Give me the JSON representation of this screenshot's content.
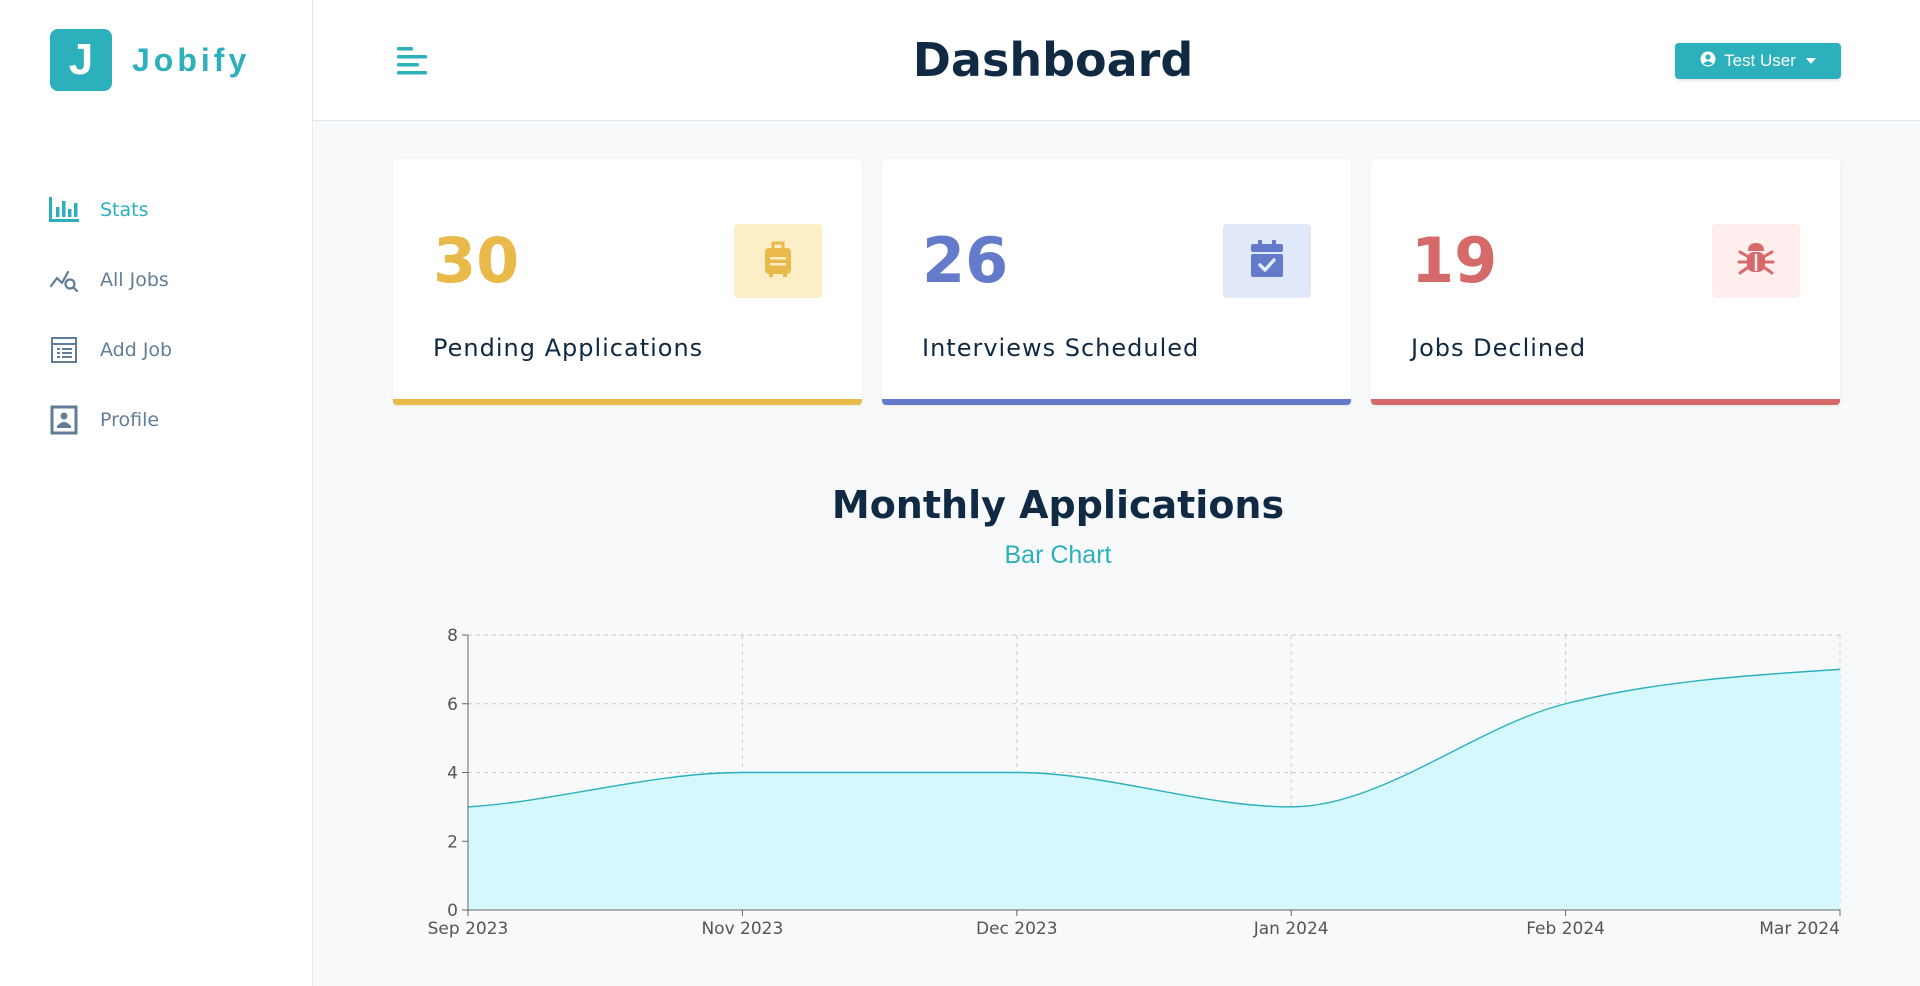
{
  "app": {
    "logo_letter": "J",
    "name": "Jobify"
  },
  "sidebar": {
    "items": [
      {
        "label": "Stats",
        "icon": "stats-icon",
        "active": true
      },
      {
        "label": "All Jobs",
        "icon": "all-jobs-icon",
        "active": false
      },
      {
        "label": "Add Job",
        "icon": "add-job-icon",
        "active": false
      },
      {
        "label": "Profile",
        "icon": "profile-icon",
        "active": false
      }
    ]
  },
  "header": {
    "title": "Dashboard",
    "user_label": "Test User"
  },
  "stats": [
    {
      "count": "30",
      "label": "Pending Applications",
      "color": "#e9b949",
      "bg": "#fcefc7",
      "icon": "briefcase-icon"
    },
    {
      "count": "26",
      "label": "Interviews Scheduled",
      "color": "#647acb",
      "bg": "#e0e8f9",
      "icon": "calendar-check-icon"
    },
    {
      "count": "19",
      "label": "Jobs Declined",
      "color": "#d66a6a",
      "bg": "#ffeeee",
      "icon": "bug-icon"
    }
  ],
  "chart_section": {
    "title": "Monthly Applications",
    "toggle_label": "Bar Chart"
  },
  "colors": {
    "primary": "#2cb1bc",
    "area_fill": "#d4f8fc"
  },
  "chart_data": {
    "type": "area",
    "categories": [
      "Sep 2023",
      "Nov 2023",
      "Dec 2023",
      "Jan 2024",
      "Feb 2024",
      "Mar 2024"
    ],
    "series": [
      {
        "values": [
          3,
          4,
          4,
          3,
          6,
          7
        ]
      }
    ],
    "ylim": [
      0,
      8
    ],
    "yticks": [
      0,
      2,
      4,
      6,
      8
    ],
    "grid": true
  }
}
